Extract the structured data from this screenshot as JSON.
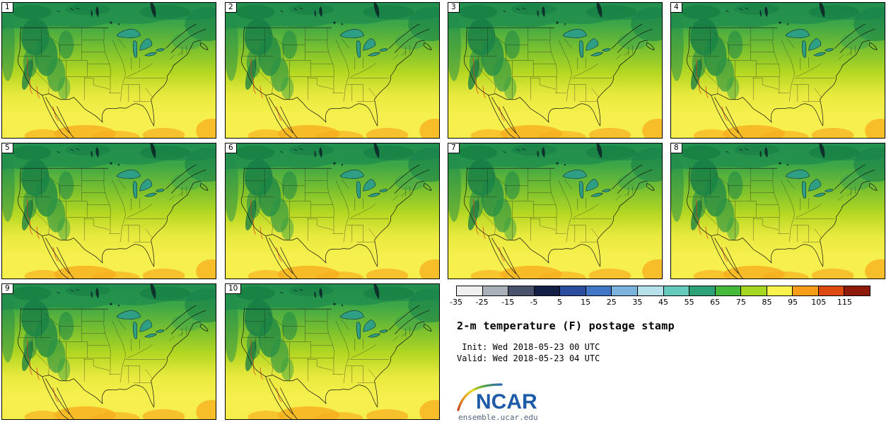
{
  "panels": {
    "labels": [
      "1",
      "2",
      "3",
      "4",
      "5",
      "6",
      "7",
      "8",
      "9",
      "10"
    ]
  },
  "chart_data": {
    "type": "heatmap",
    "subtype": "ensemble postage-stamp temperature maps (10 members)",
    "title": "2-m temperature (F) postage stamp",
    "colorbar": {
      "tick_labels": [
        "-35",
        "-25",
        "-15",
        "-5",
        "5",
        "15",
        "25",
        "35",
        "45",
        "55",
        "65",
        "75",
        "85",
        "95",
        "105",
        "115"
      ],
      "cell_colors": [
        "#efefef",
        "#a9b0b7",
        "#49536b",
        "#131f47",
        "#2b4d9d",
        "#3f77c6",
        "#7cb3de",
        "#b5e2ea",
        "#64cabc",
        "#2ea277",
        "#46b83a",
        "#a4d622",
        "#f7f24c",
        "#f79c16",
        "#dc4a10",
        "#8e1a0a"
      ],
      "units": "F"
    },
    "panel_numbers": [
      1,
      2,
      3,
      4,
      5,
      6,
      7,
      8,
      9,
      10
    ]
  },
  "legend": {
    "title": "2-m temperature (F) postage stamp",
    "init_line": " Init: Wed 2018-05-23 00 UTC",
    "valid_line": "Valid: Wed 2018-05-23 04 UTC",
    "logo_text": "NCAR",
    "site_text": "ensemble.ucar.edu"
  },
  "colors": {
    "ncar_blue": "#1e5ca8",
    "warm_patch": "#f7ae1e",
    "cool_green": "#1f8c4c",
    "red_contour": "#e2391b"
  }
}
